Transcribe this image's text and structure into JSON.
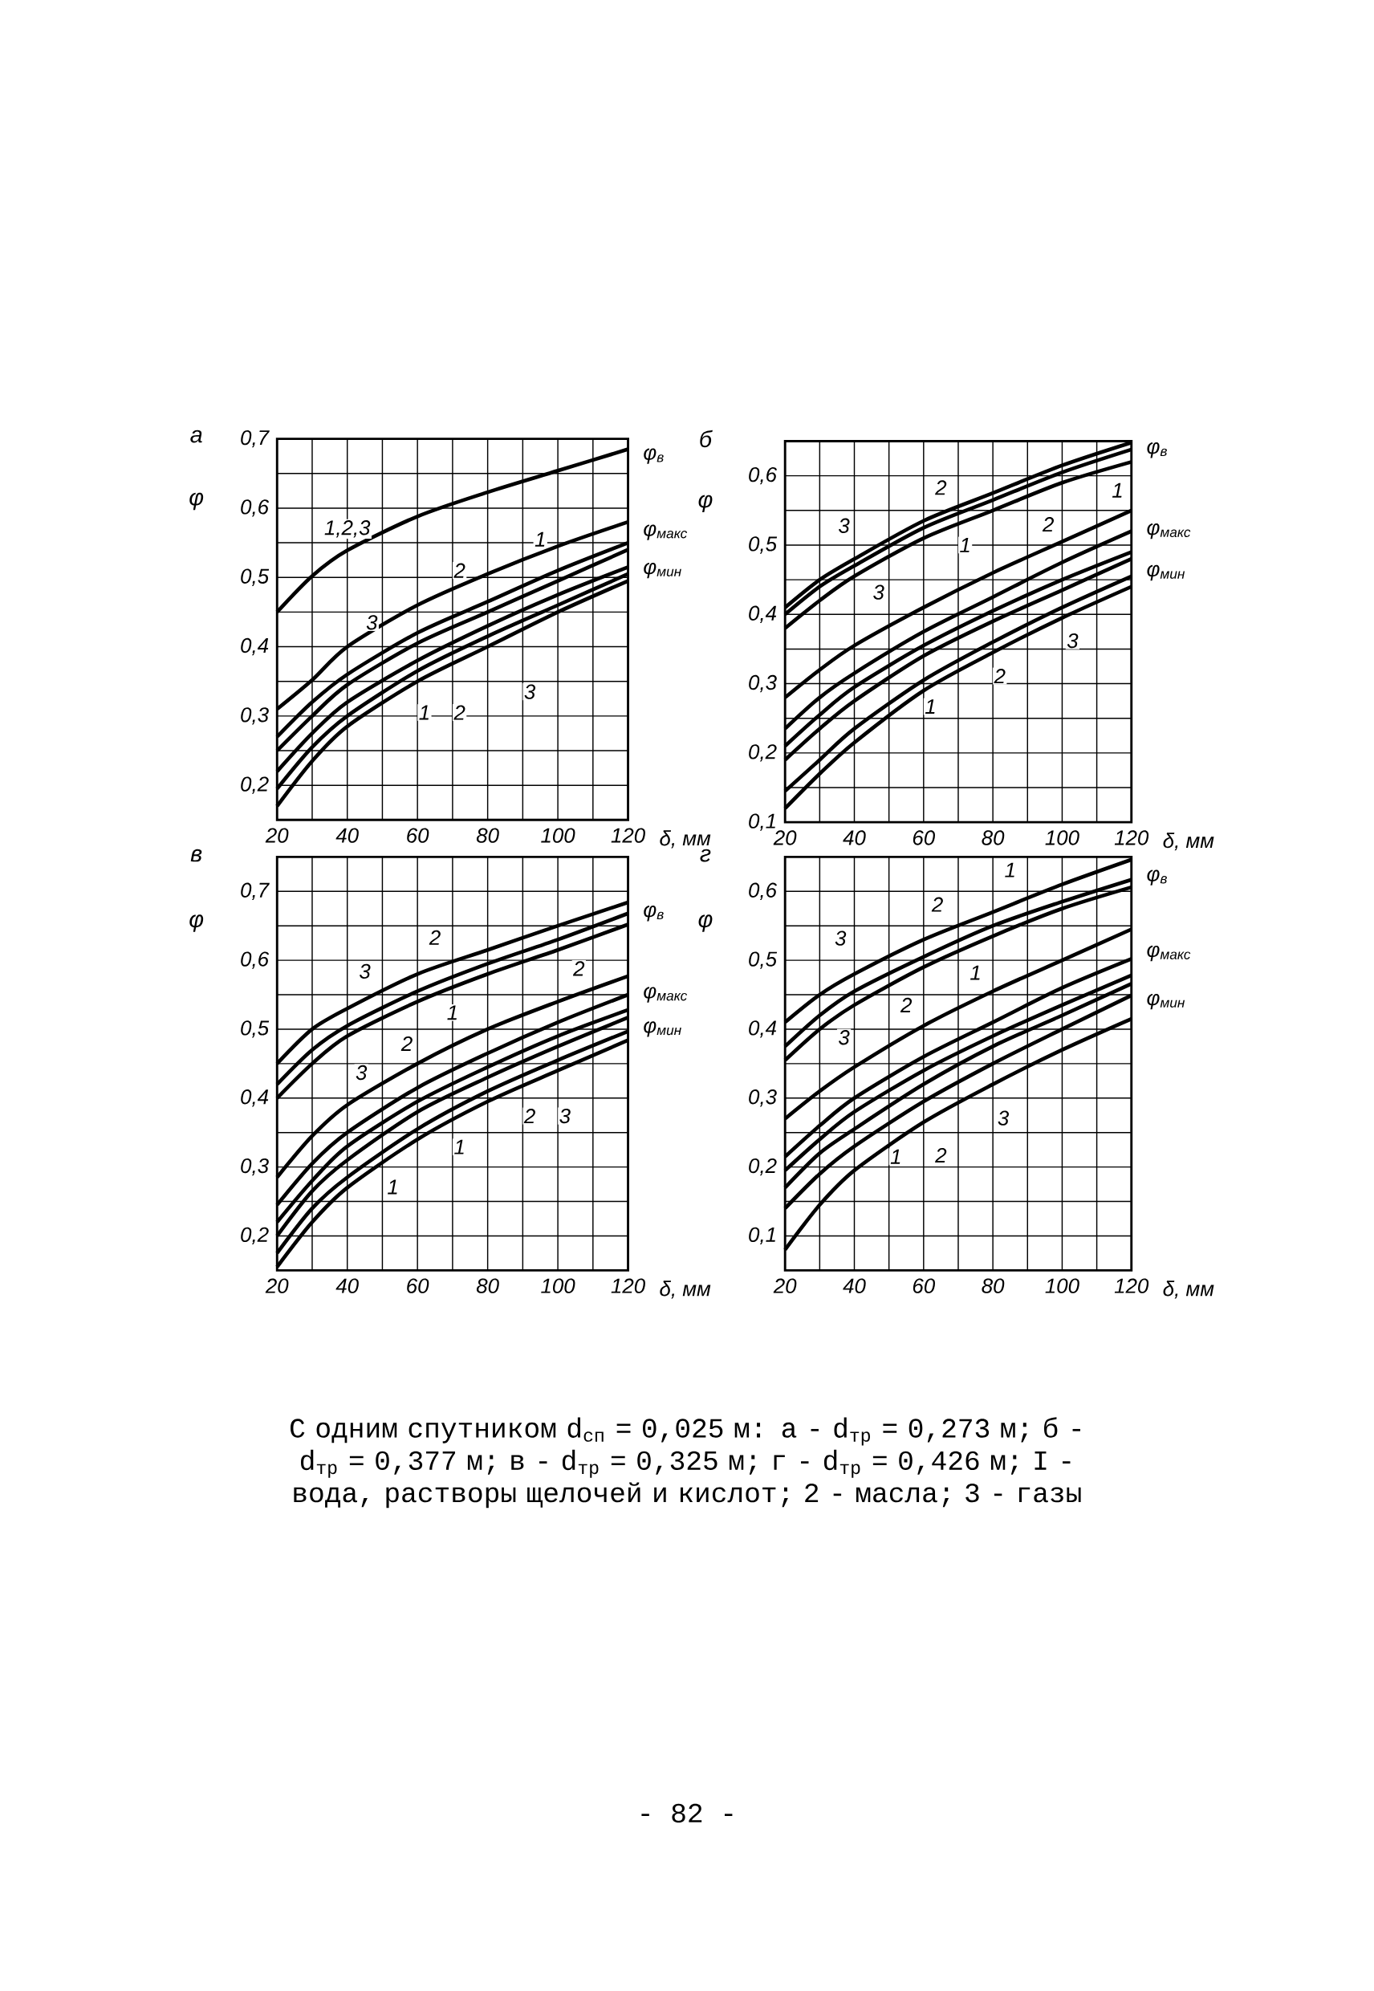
{
  "chart_data": [
    {
      "type": "line",
      "title": "а",
      "xlabel": "δ, мм",
      "ylabel": "φ",
      "grid": true,
      "x": [
        20,
        30,
        40,
        60,
        80,
        100,
        120
      ],
      "xlim": [
        20,
        120
      ],
      "xticks": [
        20,
        {
          "value": 30,
          "label": null
        },
        40,
        {
          "value": 50,
          "label": null
        },
        60,
        {
          "value": 70,
          "label": null
        },
        80,
        {
          "value": 90,
          "label": null
        },
        100,
        {
          "value": 110,
          "label": null
        },
        120
      ],
      "ylim": [
        0.15,
        0.7
      ],
      "yticks": [
        {
          "value": 0.2,
          "label": "0,2"
        },
        {
          "value": 0.25,
          "label": null
        },
        {
          "value": 0.3,
          "label": "0,3"
        },
        {
          "value": 0.35,
          "label": null
        },
        {
          "value": 0.4,
          "label": "0,4"
        },
        {
          "value": 0.45,
          "label": null
        },
        {
          "value": 0.5,
          "label": "0,5"
        },
        {
          "value": 0.55,
          "label": null
        },
        {
          "value": 0.6,
          "label": "0,6"
        },
        {
          "value": 0.65,
          "label": null
        },
        {
          "value": 0.7,
          "label": "0,7"
        }
      ],
      "series": [
        {
          "color": "#000000",
          "values": [
            0.45,
            0.502,
            0.539,
            0.588,
            0.623,
            0.654,
            0.685
          ]
        },
        {
          "color": "#000000",
          "values": [
            0.31,
            0.352,
            0.4,
            0.46,
            0.505,
            0.545,
            0.58
          ]
        },
        {
          "color": "#000000",
          "values": [
            0.27,
            0.32,
            0.36,
            0.42,
            0.465,
            0.51,
            0.55
          ]
        },
        {
          "color": "#000000",
          "values": [
            0.25,
            0.3,
            0.345,
            0.405,
            0.45,
            0.495,
            0.54
          ]
        },
        {
          "color": "#000000",
          "values": [
            0.22,
            0.275,
            0.32,
            0.38,
            0.43,
            0.475,
            0.515
          ]
        },
        {
          "color": "#000000",
          "values": [
            0.195,
            0.255,
            0.3,
            0.365,
            0.415,
            0.46,
            0.505
          ]
        },
        {
          "color": "#000000",
          "values": [
            0.17,
            0.235,
            0.285,
            0.35,
            0.4,
            0.45,
            0.495
          ]
        }
      ],
      "annotations": [
        "1,2,3",
        "3",
        "2",
        "1",
        "1",
        "2",
        "3",
        "φ$_{в}$",
        "φ$_{макс}$",
        "φ$_{мин}$"
      ]
    },
    {
      "type": "line",
      "title": "б",
      "xlabel": "δ, мм",
      "ylabel": "φ",
      "grid": true,
      "x": [
        20,
        30,
        40,
        60,
        80,
        100,
        120
      ],
      "xlim": [
        20,
        120
      ],
      "xticks": [
        20,
        {
          "value": 30,
          "label": null
        },
        40,
        {
          "value": 50,
          "label": null
        },
        60,
        {
          "value": 70,
          "label": null
        },
        80,
        {
          "value": 90,
          "label": null
        },
        100,
        {
          "value": 110,
          "label": null
        },
        120
      ],
      "ylim": [
        0.1,
        0.65
      ],
      "yticks": [
        {
          "value": 0.1,
          "label": "0,1"
        },
        {
          "value": 0.15,
          "label": null
        },
        {
          "value": 0.2,
          "label": "0,2"
        },
        {
          "value": 0.25,
          "label": null
        },
        {
          "value": 0.3,
          "label": "0,3"
        },
        {
          "value": 0.35,
          "label": null
        },
        {
          "value": 0.4,
          "label": "0,4"
        },
        {
          "value": 0.45,
          "label": null
        },
        {
          "value": 0.5,
          "label": "0,5"
        },
        {
          "value": 0.55,
          "label": null
        },
        {
          "value": 0.6,
          "label": "0,6"
        }
      ],
      "series": [
        {
          "color": "#000000",
          "values": [
            0.41,
            0.45,
            0.48,
            0.535,
            0.575,
            0.615,
            0.648
          ]
        },
        {
          "color": "#000000",
          "values": [
            0.4,
            0.44,
            0.47,
            0.525,
            0.565,
            0.605,
            0.638
          ]
        },
        {
          "color": "#000000",
          "values": [
            0.38,
            0.42,
            0.455,
            0.51,
            0.55,
            0.59,
            0.62
          ]
        },
        {
          "color": "#000000",
          "values": [
            0.28,
            0.32,
            0.355,
            0.41,
            0.46,
            0.505,
            0.55
          ]
        },
        {
          "color": "#000000",
          "values": [
            0.235,
            0.28,
            0.315,
            0.375,
            0.425,
            0.475,
            0.52
          ]
        },
        {
          "color": "#000000",
          "values": [
            0.21,
            0.255,
            0.295,
            0.355,
            0.405,
            0.45,
            0.49
          ]
        },
        {
          "color": "#000000",
          "values": [
            0.19,
            0.235,
            0.275,
            0.34,
            0.39,
            0.435,
            0.48
          ]
        },
        {
          "color": "#000000",
          "values": [
            0.145,
            0.19,
            0.235,
            0.305,
            0.36,
            0.41,
            0.455
          ]
        },
        {
          "color": "#000000",
          "values": [
            0.12,
            0.17,
            0.215,
            0.29,
            0.345,
            0.395,
            0.44
          ]
        }
      ],
      "annotations": [
        "3",
        "2",
        "1",
        "3",
        "2",
        "1",
        "1",
        "2",
        "3",
        "φ$_{в}$",
        "φ$_{макс}$",
        "φ$_{мин}$"
      ]
    },
    {
      "type": "line",
      "title": "в",
      "xlabel": "δ, мм",
      "ylabel": "φ",
      "grid": true,
      "x": [
        20,
        30,
        40,
        60,
        80,
        100,
        120
      ],
      "xlim": [
        20,
        120
      ],
      "xticks": [
        20,
        {
          "value": 30,
          "label": null
        },
        40,
        {
          "value": 50,
          "label": null
        },
        60,
        {
          "value": 70,
          "label": null
        },
        80,
        {
          "value": 90,
          "label": null
        },
        100,
        {
          "value": 110,
          "label": null
        },
        120
      ],
      "ylim": [
        0.15,
        0.75
      ],
      "yticks": [
        {
          "value": 0.2,
          "label": "0,2"
        },
        {
          "value": 0.25,
          "label": null
        },
        {
          "value": 0.3,
          "label": "0,3"
        },
        {
          "value": 0.35,
          "label": null
        },
        {
          "value": 0.4,
          "label": "0,4"
        },
        {
          "value": 0.45,
          "label": null
        },
        {
          "value": 0.5,
          "label": "0,5"
        },
        {
          "value": 0.55,
          "label": null
        },
        {
          "value": 0.6,
          "label": "0,6"
        },
        {
          "value": 0.65,
          "label": null
        },
        {
          "value": 0.7,
          "label": "0,7"
        }
      ],
      "series": [
        {
          "color": "#000000",
          "values": [
            0.45,
            0.5,
            0.53,
            0.58,
            0.615,
            0.65,
            0.684
          ]
        },
        {
          "color": "#000000",
          "values": [
            0.42,
            0.47,
            0.505,
            0.555,
            0.595,
            0.63,
            0.668
          ]
        },
        {
          "color": "#000000",
          "values": [
            0.4,
            0.45,
            0.49,
            0.54,
            0.58,
            0.615,
            0.652
          ]
        },
        {
          "color": "#000000",
          "values": [
            0.285,
            0.345,
            0.39,
            0.45,
            0.5,
            0.54,
            0.577
          ]
        },
        {
          "color": "#000000",
          "values": [
            0.245,
            0.305,
            0.35,
            0.415,
            0.465,
            0.51,
            0.55
          ]
        },
        {
          "color": "#000000",
          "values": [
            0.22,
            0.28,
            0.33,
            0.395,
            0.445,
            0.49,
            0.528
          ]
        },
        {
          "color": "#000000",
          "values": [
            0.2,
            0.265,
            0.31,
            0.38,
            0.43,
            0.475,
            0.517
          ]
        },
        {
          "color": "#000000",
          "values": [
            0.175,
            0.24,
            0.285,
            0.355,
            0.41,
            0.455,
            0.497
          ]
        },
        {
          "color": "#000000",
          "values": [
            0.155,
            0.22,
            0.27,
            0.34,
            0.395,
            0.44,
            0.484
          ]
        }
      ],
      "annotations": [
        "3",
        "2",
        "1",
        "2",
        "3",
        "1",
        "1",
        "2",
        "2",
        "3",
        "φ$_{в}$",
        "φ$_{макс}$",
        "φ$_{мин}$"
      ]
    },
    {
      "type": "line",
      "title": "г",
      "xlabel": "δ, мм",
      "ylabel": "φ",
      "grid": true,
      "x": [
        20,
        30,
        40,
        60,
        80,
        100,
        120
      ],
      "xlim": [
        20,
        120
      ],
      "xticks": [
        20,
        {
          "value": 30,
          "label": null
        },
        40,
        {
          "value": 50,
          "label": null
        },
        60,
        {
          "value": 70,
          "label": null
        },
        80,
        {
          "value": 90,
          "label": null
        },
        100,
        {
          "value": 110,
          "label": null
        },
        120
      ],
      "ylim": [
        0.05,
        0.65
      ],
      "yticks": [
        {
          "value": 0.1,
          "label": "0,1"
        },
        {
          "value": 0.15,
          "label": null
        },
        {
          "value": 0.2,
          "label": "0,2"
        },
        {
          "value": 0.25,
          "label": null
        },
        {
          "value": 0.3,
          "label": "0,3"
        },
        {
          "value": 0.35,
          "label": null
        },
        {
          "value": 0.4,
          "label": "0,4"
        },
        {
          "value": 0.45,
          "label": null
        },
        {
          "value": 0.5,
          "label": "0,5"
        },
        {
          "value": 0.55,
          "label": null
        },
        {
          "value": 0.6,
          "label": "0,6"
        }
      ],
      "series": [
        {
          "color": "#000000",
          "values": [
            0.41,
            0.45,
            0.48,
            0.53,
            0.57,
            0.61,
            0.646
          ]
        },
        {
          "color": "#000000",
          "values": [
            0.375,
            0.42,
            0.455,
            0.505,
            0.55,
            0.585,
            0.617
          ]
        },
        {
          "color": "#000000",
          "values": [
            0.355,
            0.4,
            0.435,
            0.49,
            0.535,
            0.575,
            0.606
          ]
        },
        {
          "color": "#000000",
          "values": [
            0.27,
            0.31,
            0.345,
            0.405,
            0.455,
            0.5,
            0.545
          ]
        },
        {
          "color": "#000000",
          "values": [
            0.215,
            0.26,
            0.3,
            0.36,
            0.41,
            0.46,
            0.502
          ]
        },
        {
          "color": "#000000",
          "values": [
            0.195,
            0.24,
            0.28,
            0.34,
            0.39,
            0.435,
            0.478
          ]
        },
        {
          "color": "#000000",
          "values": [
            0.17,
            0.22,
            0.255,
            0.32,
            0.375,
            0.42,
            0.466
          ]
        },
        {
          "color": "#000000",
          "values": [
            0.14,
            0.19,
            0.23,
            0.295,
            0.35,
            0.4,
            0.449
          ]
        },
        {
          "color": "#000000",
          "values": [
            0.08,
            0.145,
            0.195,
            0.265,
            0.32,
            0.37,
            0.415
          ]
        }
      ],
      "annotations": [
        "1",
        "2",
        "3",
        "2",
        "1",
        "3",
        "1",
        "2",
        "3",
        "φ$_{в}$",
        "φ$_{макс}$",
        "φ$_{мин}$"
      ]
    },
    {
      "type": "other",
      "annotations": [
        "С одним спутником d$_{сп}$ = 0,025 м: а - d$_{тр}$ = 0,273 м; б - d$_{тр}$ = 0,377 м; в - d$_{тр}$ = 0,325 м; г - d$_{тр}$ = 0,426 м; I - вода, растворы щелочей и кислот; 2 - масла; 3 - газы",
        "- 82 -"
      ]
    }
  ]
}
